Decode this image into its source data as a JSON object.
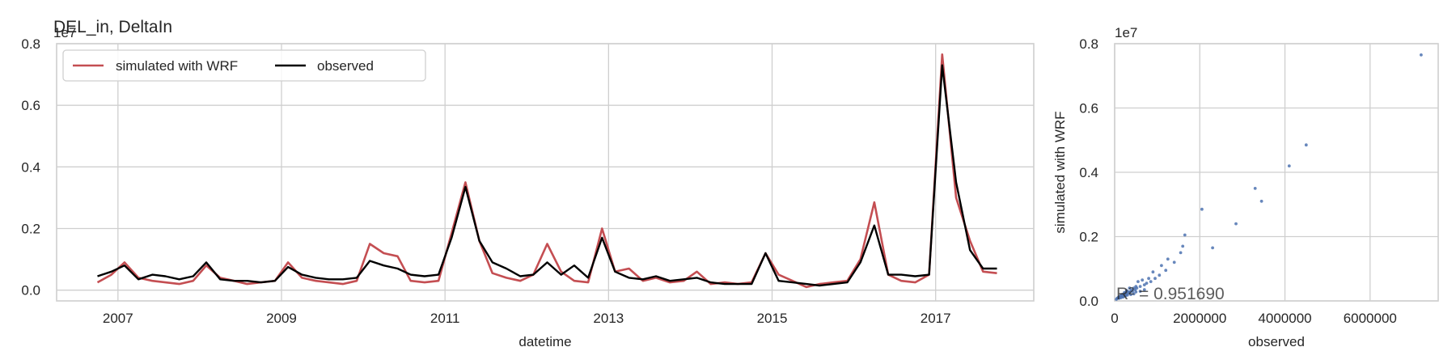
{
  "chart_data": [
    {
      "type": "line",
      "title": "DEL_in, DeltaIn",
      "xlabel": "datetime",
      "ylabel": "",
      "y_offset_text": "1e7",
      "x_ticks": [
        "2007",
        "2009",
        "2011",
        "2013",
        "2015",
        "2017"
      ],
      "y_ticks": [
        "0.0",
        "0.2",
        "0.4",
        "0.6",
        "0.8"
      ],
      "xlim": [
        2006.25,
        2018.2
      ],
      "ylim": [
        -0.035,
        0.8
      ],
      "legend": {
        "placement": "upper-left",
        "columns": 2
      },
      "grid": true,
      "units_note": "x values are decimal years; y values are in units of 1e7",
      "series": [
        {
          "name": "simulated with WRF",
          "color": "#c44e52",
          "x": [
            2006.75,
            2006.92,
            2007.08,
            2007.25,
            2007.42,
            2007.58,
            2007.75,
            2007.92,
            2008.08,
            2008.25,
            2008.42,
            2008.58,
            2008.75,
            2008.92,
            2009.08,
            2009.25,
            2009.42,
            2009.58,
            2009.75,
            2009.92,
            2010.08,
            2010.25,
            2010.42,
            2010.58,
            2010.75,
            2010.92,
            2011.08,
            2011.25,
            2011.42,
            2011.58,
            2011.75,
            2011.92,
            2012.08,
            2012.25,
            2012.42,
            2012.58,
            2012.75,
            2012.92,
            2013.08,
            2013.25,
            2013.42,
            2013.58,
            2013.75,
            2013.92,
            2014.08,
            2014.25,
            2014.42,
            2014.58,
            2014.75,
            2014.92,
            2015.08,
            2015.25,
            2015.42,
            2015.58,
            2015.75,
            2015.92,
            2016.08,
            2016.25,
            2016.42,
            2016.58,
            2016.75,
            2016.92,
            2017.08,
            2017.25,
            2017.42,
            2017.58,
            2017.75
          ],
          "y": [
            0.025,
            0.05,
            0.09,
            0.04,
            0.03,
            0.025,
            0.02,
            0.03,
            0.08,
            0.04,
            0.03,
            0.02,
            0.025,
            0.03,
            0.09,
            0.04,
            0.03,
            0.025,
            0.02,
            0.03,
            0.15,
            0.12,
            0.11,
            0.03,
            0.025,
            0.03,
            0.185,
            0.35,
            0.16,
            0.055,
            0.04,
            0.03,
            0.05,
            0.15,
            0.06,
            0.03,
            0.025,
            0.2,
            0.06,
            0.07,
            0.03,
            0.04,
            0.025,
            0.03,
            0.06,
            0.02,
            0.025,
            0.02,
            0.025,
            0.12,
            0.05,
            0.03,
            0.01,
            0.02,
            0.025,
            0.03,
            0.1,
            0.285,
            0.05,
            0.03,
            0.025,
            0.05,
            0.765,
            0.3,
            0.16,
            0.06,
            0.055
          ]
        },
        {
          "name": "observed",
          "color": "#000000",
          "x": [
            2006.75,
            2006.92,
            2007.08,
            2007.25,
            2007.42,
            2007.58,
            2007.75,
            2007.92,
            2008.08,
            2008.25,
            2008.42,
            2008.58,
            2008.75,
            2008.92,
            2009.08,
            2009.25,
            2009.42,
            2009.58,
            2009.75,
            2009.92,
            2010.08,
            2010.25,
            2010.42,
            2010.58,
            2010.75,
            2010.92,
            2011.08,
            2011.25,
            2011.42,
            2011.58,
            2011.75,
            2011.92,
            2012.08,
            2012.25,
            2012.42,
            2012.58,
            2012.75,
            2012.92,
            2013.08,
            2013.25,
            2013.42,
            2013.58,
            2013.75,
            2013.92,
            2014.08,
            2014.25,
            2014.42,
            2014.58,
            2014.75,
            2014.92,
            2015.08,
            2015.25,
            2015.42,
            2015.58,
            2015.75,
            2015.92,
            2016.08,
            2016.25,
            2016.42,
            2016.58,
            2016.75,
            2016.92,
            2017.08,
            2017.25,
            2017.42,
            2017.58,
            2017.75
          ],
          "y": [
            0.045,
            0.06,
            0.08,
            0.035,
            0.05,
            0.045,
            0.035,
            0.045,
            0.09,
            0.035,
            0.03,
            0.03,
            0.025,
            0.03,
            0.075,
            0.05,
            0.04,
            0.035,
            0.035,
            0.04,
            0.095,
            0.08,
            0.07,
            0.05,
            0.045,
            0.05,
            0.17,
            0.335,
            0.16,
            0.09,
            0.07,
            0.045,
            0.05,
            0.09,
            0.05,
            0.08,
            0.04,
            0.17,
            0.06,
            0.04,
            0.035,
            0.045,
            0.03,
            0.035,
            0.04,
            0.025,
            0.02,
            0.02,
            0.02,
            0.12,
            0.03,
            0.025,
            0.02,
            0.015,
            0.02,
            0.025,
            0.09,
            0.21,
            0.05,
            0.05,
            0.045,
            0.05,
            0.73,
            0.35,
            0.13,
            0.07,
            0.07
          ]
        }
      ]
    },
    {
      "type": "scatter",
      "title": "",
      "xlabel": "observed",
      "ylabel": "simulated with WRF",
      "y_offset_text": "1e7",
      "x_ticks": [
        "0",
        "2000000",
        "4000000",
        "6000000"
      ],
      "y_ticks": [
        "0.0",
        "0.2",
        "0.4",
        "0.6",
        "0.8"
      ],
      "xlim": [
        0,
        7600000
      ],
      "ylim": [
        0,
        0.8
      ],
      "grid": true,
      "color": "#4c72b0",
      "annotation": "R² = 0.951690",
      "units_note": "x values are in raw units; y values are in units of 1e7",
      "x": [
        7200000,
        4500000,
        4100000,
        3450000,
        3300000,
        2850000,
        2050000,
        2300000,
        1650000,
        1600000,
        1550000,
        1400000,
        1250000,
        1200000,
        1100000,
        1050000,
        950000,
        900000,
        850000,
        800000,
        750000,
        700000,
        650000,
        600000,
        550000,
        520000,
        500000,
        480000,
        450000,
        420000,
        400000,
        380000,
        350000,
        330000,
        300000,
        280000,
        260000,
        240000,
        220000,
        200000,
        180000,
        160000,
        140000,
        120000,
        100000,
        80000,
        60000,
        40000,
        700000,
        600000,
        500000,
        450000,
        380000,
        300000,
        250000,
        200000,
        150000,
        100000,
        350000,
        280000,
        230000,
        180000,
        130000
      ],
      "y": [
        0.765,
        0.485,
        0.42,
        0.31,
        0.35,
        0.24,
        0.285,
        0.165,
        0.205,
        0.17,
        0.15,
        0.12,
        0.13,
        0.095,
        0.11,
        0.08,
        0.07,
        0.09,
        0.06,
        0.07,
        0.055,
        0.05,
        0.065,
        0.045,
        0.06,
        0.04,
        0.045,
        0.035,
        0.04,
        0.03,
        0.035,
        0.03,
        0.028,
        0.025,
        0.03,
        0.02,
        0.025,
        0.02,
        0.022,
        0.015,
        0.02,
        0.018,
        0.015,
        0.01,
        0.012,
        0.01,
        0.008,
        0.005,
        0.035,
        0.03,
        0.028,
        0.022,
        0.02,
        0.018,
        0.015,
        0.012,
        0.01,
        0.008,
        0.04,
        0.032,
        0.026,
        0.02,
        0.014
      ]
    }
  ]
}
